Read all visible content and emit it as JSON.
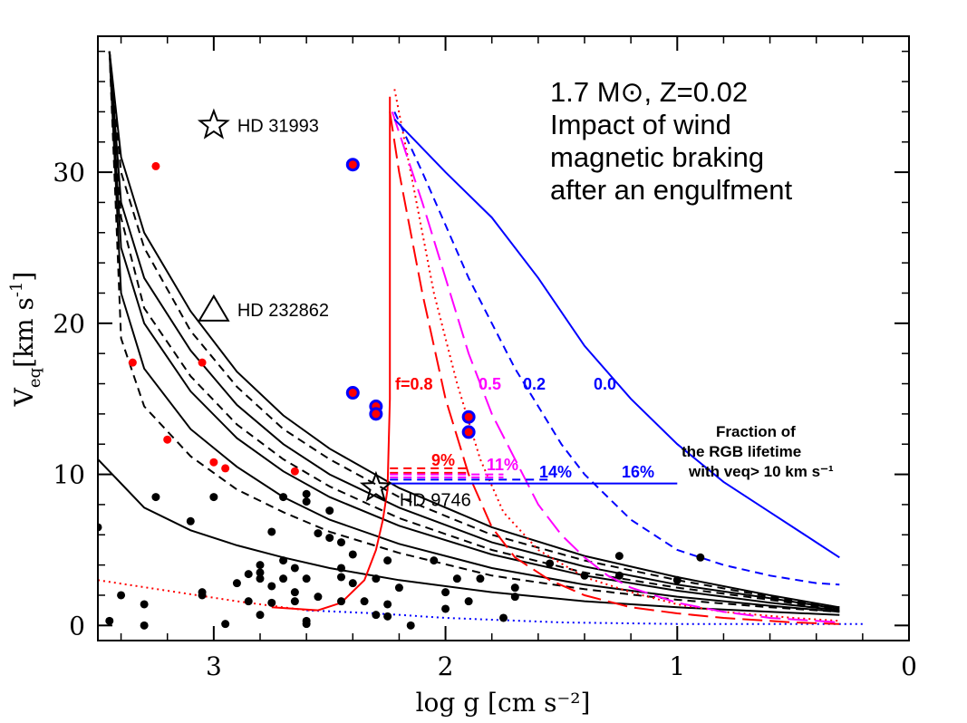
{
  "chart_data": {
    "type": "scatter",
    "xlabel": "log g [cm s⁻²]",
    "ylabel": [
      "V",
      "eq",
      "[km s",
      "-1",
      "]"
    ],
    "xlim": [
      3.5,
      0
    ],
    "ylim": [
      -1,
      39
    ],
    "xticks": [
      3,
      2,
      1,
      0
    ],
    "yticks": [
      0,
      10,
      20,
      30
    ],
    "xminorticks": [
      3.4,
      3.2,
      2.8,
      2.6,
      2.4,
      2.2,
      1.8,
      1.6,
      1.4,
      1.2,
      0.8,
      0.6,
      0.4,
      0.2
    ],
    "yminorticks": [
      2,
      4,
      6,
      8,
      12,
      14,
      16,
      18,
      22,
      24,
      26,
      28,
      32,
      34,
      36,
      38
    ],
    "title_lines": [
      "1.7 M⊙, Z=0.02",
      "Impact of wind",
      "magnetic braking",
      "after an engulfment"
    ],
    "fraction_note": [
      "Fraction of",
      "the RGB lifetime",
      "with veq> 10 km s⁻¹"
    ],
    "curve_labels": [
      {
        "text": "f=0.8",
        "color": "#ff0000"
      },
      {
        "text": "0.5",
        "color": "#ff00ff"
      },
      {
        "text": "0.2",
        "color": "#0000ff"
      },
      {
        "text": "0.0",
        "color": "#0000ff"
      }
    ],
    "fraction_labels": [
      {
        "text": "9%",
        "color": "#ff0000"
      },
      {
        "text": "11%",
        "color": "#ff00ff"
      },
      {
        "text": "14%",
        "color": "#0000ff"
      },
      {
        "text": "16%",
        "color": "#0000ff"
      }
    ],
    "markers": [
      {
        "symbol": "star",
        "x": 3.0,
        "y": 33.1,
        "label": "HD 31993"
      },
      {
        "symbol": "triangle",
        "x": 3.0,
        "y": 20.9,
        "label": "HD 232862"
      },
      {
        "symbol": "star",
        "x": 2.3,
        "y": 9.1,
        "label": "HD 9746"
      }
    ],
    "series": [
      {
        "type": "line",
        "color": "#000000",
        "dash": "solid",
        "x": [
          3.5,
          3.3,
          3.1,
          2.9,
          2.7,
          2.5,
          2.2,
          1.8,
          1.4,
          1.0,
          0.6,
          0.3
        ],
        "values": [
          11,
          7.8,
          6.3,
          5.3,
          4.5,
          3.8,
          3.0,
          2.2,
          1.6,
          1.2,
          0.9,
          0.7
        ]
      },
      {
        "type": "line",
        "color": "#000000",
        "dash": "solid",
        "x": [
          3.45,
          3.4,
          3.3,
          3.1,
          2.9,
          2.7,
          2.5,
          2.2,
          1.8,
          1.4,
          1.0,
          0.6,
          0.3
        ],
        "values": [
          38,
          22,
          17,
          13,
          10.5,
          8.5,
          7.0,
          5.4,
          3.8,
          2.7,
          1.9,
          1.3,
          0.9
        ]
      },
      {
        "type": "line",
        "color": "#000000",
        "dash": "solid",
        "x": [
          3.45,
          3.4,
          3.3,
          3.1,
          2.9,
          2.7,
          2.5,
          2.2,
          1.8,
          1.4,
          1.0,
          0.6,
          0.3
        ],
        "values": [
          38,
          25,
          20,
          15.5,
          12.4,
          10.2,
          8.5,
          6.6,
          4.7,
          3.3,
          2.3,
          1.5,
          1.0
        ]
      },
      {
        "type": "line",
        "color": "#000000",
        "dash": "solid",
        "x": [
          3.45,
          3.4,
          3.3,
          3.1,
          2.9,
          2.7,
          2.5,
          2.2,
          1.8,
          1.4,
          1.0,
          0.6,
          0.3
        ],
        "values": [
          38,
          28,
          23,
          18.2,
          14.6,
          12.0,
          10.0,
          7.8,
          5.5,
          3.9,
          2.7,
          1.8,
          1.1
        ]
      },
      {
        "type": "line",
        "color": "#000000",
        "dash": "solid",
        "x": [
          3.45,
          3.4,
          3.3,
          3.1,
          2.9,
          2.7,
          2.5,
          2.2,
          1.8,
          1.4,
          1.0,
          0.6,
          0.3
        ],
        "values": [
          38,
          31,
          26,
          20.8,
          16.8,
          13.9,
          11.7,
          9.1,
          6.5,
          4.6,
          3.2,
          2.0,
          1.2
        ]
      },
      {
        "type": "line",
        "color": "#000000",
        "dash": "dashed",
        "x": [
          3.45,
          3.4,
          3.3,
          3.1,
          2.9,
          2.7,
          2.5,
          2.2,
          1.8,
          1.4,
          1.0,
          0.6,
          0.3
        ],
        "values": [
          38,
          19,
          14.5,
          11.2,
          9.0,
          7.5,
          6.2,
          4.8,
          3.3,
          2.4,
          1.7,
          1.2,
          0.9
        ]
      },
      {
        "type": "line",
        "color": "#000000",
        "dash": "dashed",
        "x": [
          3.45,
          3.4,
          3.3,
          3.1,
          2.9,
          2.7,
          2.5,
          2.2,
          1.8,
          1.4,
          1.0,
          0.6,
          0.3
        ],
        "values": [
          38,
          27,
          21,
          16.5,
          13.3,
          11.0,
          9.2,
          7.1,
          5.0,
          3.5,
          2.5,
          1.7,
          1.0
        ]
      },
      {
        "type": "line",
        "color": "#000000",
        "dash": "dashed",
        "x": [
          3.45,
          3.4,
          3.3,
          3.1,
          2.9,
          2.7,
          2.5,
          2.2,
          1.8,
          1.4,
          1.0,
          0.6,
          0.3
        ],
        "values": [
          38,
          30,
          25,
          19.5,
          15.8,
          13.0,
          11.0,
          8.5,
          6.0,
          4.3,
          3.0,
          1.9,
          1.2
        ]
      },
      {
        "type": "line",
        "color": "#ff0000",
        "dash": "dotted",
        "x": [
          3.5,
          3.2,
          2.9,
          2.7,
          2.6,
          2.55
        ],
        "values": [
          3.0,
          2.3,
          1.6,
          1.2,
          1.0,
          1.0
        ]
      },
      {
        "type": "line",
        "color": "#0000ff",
        "dash": "dotted",
        "x": [
          2.6,
          2.3,
          2.0,
          1.5,
          1.0,
          0.5,
          0.2
        ],
        "values": [
          1.0,
          0.8,
          0.5,
          0.2,
          0.1,
          0.1,
          0.1
        ]
      },
      {
        "type": "line",
        "color": "#ff0000",
        "dash": "solid",
        "x": [
          2.75,
          2.55,
          2.45,
          2.35,
          2.3,
          2.27,
          2.25,
          2.24,
          2.24
        ],
        "values": [
          1.2,
          1.0,
          1.5,
          3.0,
          5,
          7,
          9,
          15,
          35
        ]
      },
      {
        "type": "line",
        "color": "#ff0000",
        "dash": "longdash",
        "x": [
          2.24,
          2.2,
          2.1,
          2.0,
          1.9,
          1.8,
          1.7,
          1.55,
          1.4,
          1.2,
          1.0,
          0.8,
          0.5,
          0.3
        ],
        "values": [
          34,
          30,
          22,
          15,
          10,
          6.5,
          4.5,
          3,
          2,
          1.2,
          0.8,
          0.5,
          0.2,
          0.1
        ]
      },
      {
        "type": "line",
        "color": "#ff0000",
        "dash": "dotted",
        "x": [
          2.22,
          2.15,
          2.05,
          1.95,
          1.85,
          1.75,
          1.6,
          1.4,
          1.2,
          1.0,
          0.8,
          0.5,
          0.3
        ],
        "values": [
          35.5,
          30,
          22,
          16,
          11,
          7.5,
          5,
          3.2,
          2.2,
          1.4,
          0.9,
          0.5,
          0.3
        ]
      },
      {
        "type": "line",
        "color": "#ff00ff",
        "dash": "longdash",
        "x": [
          2.23,
          2.1,
          2.0,
          1.9,
          1.8,
          1.7,
          1.6,
          1.5,
          1.4,
          1.3,
          1.2,
          1.0,
          0.8,
          0.6,
          0.4,
          0.3
        ],
        "values": [
          34,
          28,
          23,
          18,
          14,
          11,
          8,
          6,
          4.5,
          3.3,
          2.5,
          1.5,
          0.9,
          0.5,
          0.3,
          0.2
        ]
      },
      {
        "type": "line",
        "color": "#0000ff",
        "dash": "dashed",
        "x": [
          2.22,
          2.1,
          2.0,
          1.9,
          1.8,
          1.7,
          1.6,
          1.5,
          1.4,
          1.3,
          1.2,
          1.1,
          1.0,
          0.8,
          0.6,
          0.4,
          0.3
        ],
        "values": [
          34,
          30,
          26.5,
          23,
          20,
          17,
          14.5,
          12,
          10,
          8.5,
          7,
          6,
          5,
          4,
          3.3,
          2.8,
          2.7
        ]
      },
      {
        "type": "line",
        "color": "#0000ff",
        "dash": "solid",
        "x": [
          2.22,
          2.0,
          1.8,
          1.6,
          1.4,
          1.2,
          1.0,
          0.8,
          0.6,
          0.4,
          0.3
        ],
        "values": [
          33.5,
          30,
          27,
          23,
          18.5,
          15,
          12,
          9.5,
          7.5,
          5.5,
          4.5
        ]
      },
      {
        "type": "line",
        "color": "#ff0000",
        "dash": "dashed",
        "x": [
          2.24,
          1.9
        ],
        "values": [
          10.4,
          10.4
        ]
      },
      {
        "type": "line",
        "color": "#ff0000",
        "dash": "dashed",
        "x": [
          2.24,
          1.9
        ],
        "values": [
          10.1,
          10.1
        ]
      },
      {
        "type": "line",
        "color": "#ff00ff",
        "dash": "dashed",
        "x": [
          2.24,
          1.75
        ],
        "values": [
          10.0,
          10.0
        ]
      },
      {
        "type": "line",
        "color": "#ff00ff",
        "dash": "dashed",
        "x": [
          2.24,
          1.75
        ],
        "values": [
          9.8,
          9.8
        ]
      },
      {
        "type": "line",
        "color": "#0000ff",
        "dash": "dashed",
        "x": [
          2.24,
          1.55
        ],
        "values": [
          9.65,
          9.65
        ]
      },
      {
        "type": "line",
        "color": "#0000ff",
        "dash": "solid",
        "x": [
          2.24,
          1.0
        ],
        "values": [
          9.4,
          9.4
        ]
      },
      {
        "type": "scatter",
        "color": "#000000",
        "marker": "dot",
        "x": [
          3.5,
          3.45,
          3.4,
          3.3,
          3.3,
          3.25,
          3.1,
          3.05,
          3.05,
          3.0,
          2.95,
          2.9,
          2.85,
          2.85,
          2.8,
          2.8,
          2.8,
          2.8,
          2.75,
          2.75,
          2.75,
          2.7,
          2.7,
          2.7,
          2.65,
          2.65,
          2.65,
          2.6,
          2.6,
          2.6,
          2.6,
          2.6,
          2.55,
          2.55,
          2.5,
          2.5,
          2.45,
          2.45,
          2.45,
          2.45,
          2.4,
          2.4,
          2.35,
          2.3,
          2.3,
          2.25,
          2.25,
          2.25,
          2.2,
          2.15,
          2.05,
          2.0,
          2.0,
          1.95,
          1.9,
          1.85,
          1.75,
          1.7,
          1.7,
          1.55,
          1.4,
          1.25,
          1.25,
          1.0,
          0.9
        ],
        "values": [
          6.5,
          0.3,
          2.0,
          1.4,
          0,
          8.5,
          6.9,
          2.2,
          2.0,
          8.5,
          0.1,
          2.8,
          3.4,
          1.6,
          4.0,
          3.5,
          3.1,
          0.7,
          6.2,
          2.6,
          1.5,
          4.3,
          8.5,
          3.1,
          3.8,
          1.6,
          2.2,
          8.7,
          8.2,
          3.1,
          0.3,
          0.1,
          6.1,
          1.9,
          7.6,
          5.8,
          5.5,
          3.8,
          3.2,
          1.6,
          4.7,
          2.8,
          1.6,
          3.1,
          0.7,
          4.3,
          1.4,
          0.6,
          2.5,
          0,
          4.3,
          2.2,
          1.1,
          3.1,
          1.6,
          3.1,
          0.5,
          2.5,
          1.9,
          4.1,
          3.3,
          4.6,
          3.3,
          3.0,
          4.5
        ]
      },
      {
        "type": "scatter",
        "color": "#ff0000",
        "marker": "dot",
        "x": [
          3.25,
          3.35,
          3.2,
          3.05,
          3.0,
          2.95,
          2.65
        ],
        "values": [
          30.4,
          17.4,
          12.3,
          17.4,
          10.8,
          10.4,
          10.2
        ]
      },
      {
        "type": "scatter",
        "color": "#ff0000",
        "edge": "#0000ff",
        "marker": "ring",
        "x": [
          2.4,
          2.4,
          2.3,
          2.3,
          1.9,
          1.9
        ],
        "values": [
          30.5,
          15.4,
          14.5,
          14.0,
          13.8,
          12.8
        ]
      }
    ]
  }
}
